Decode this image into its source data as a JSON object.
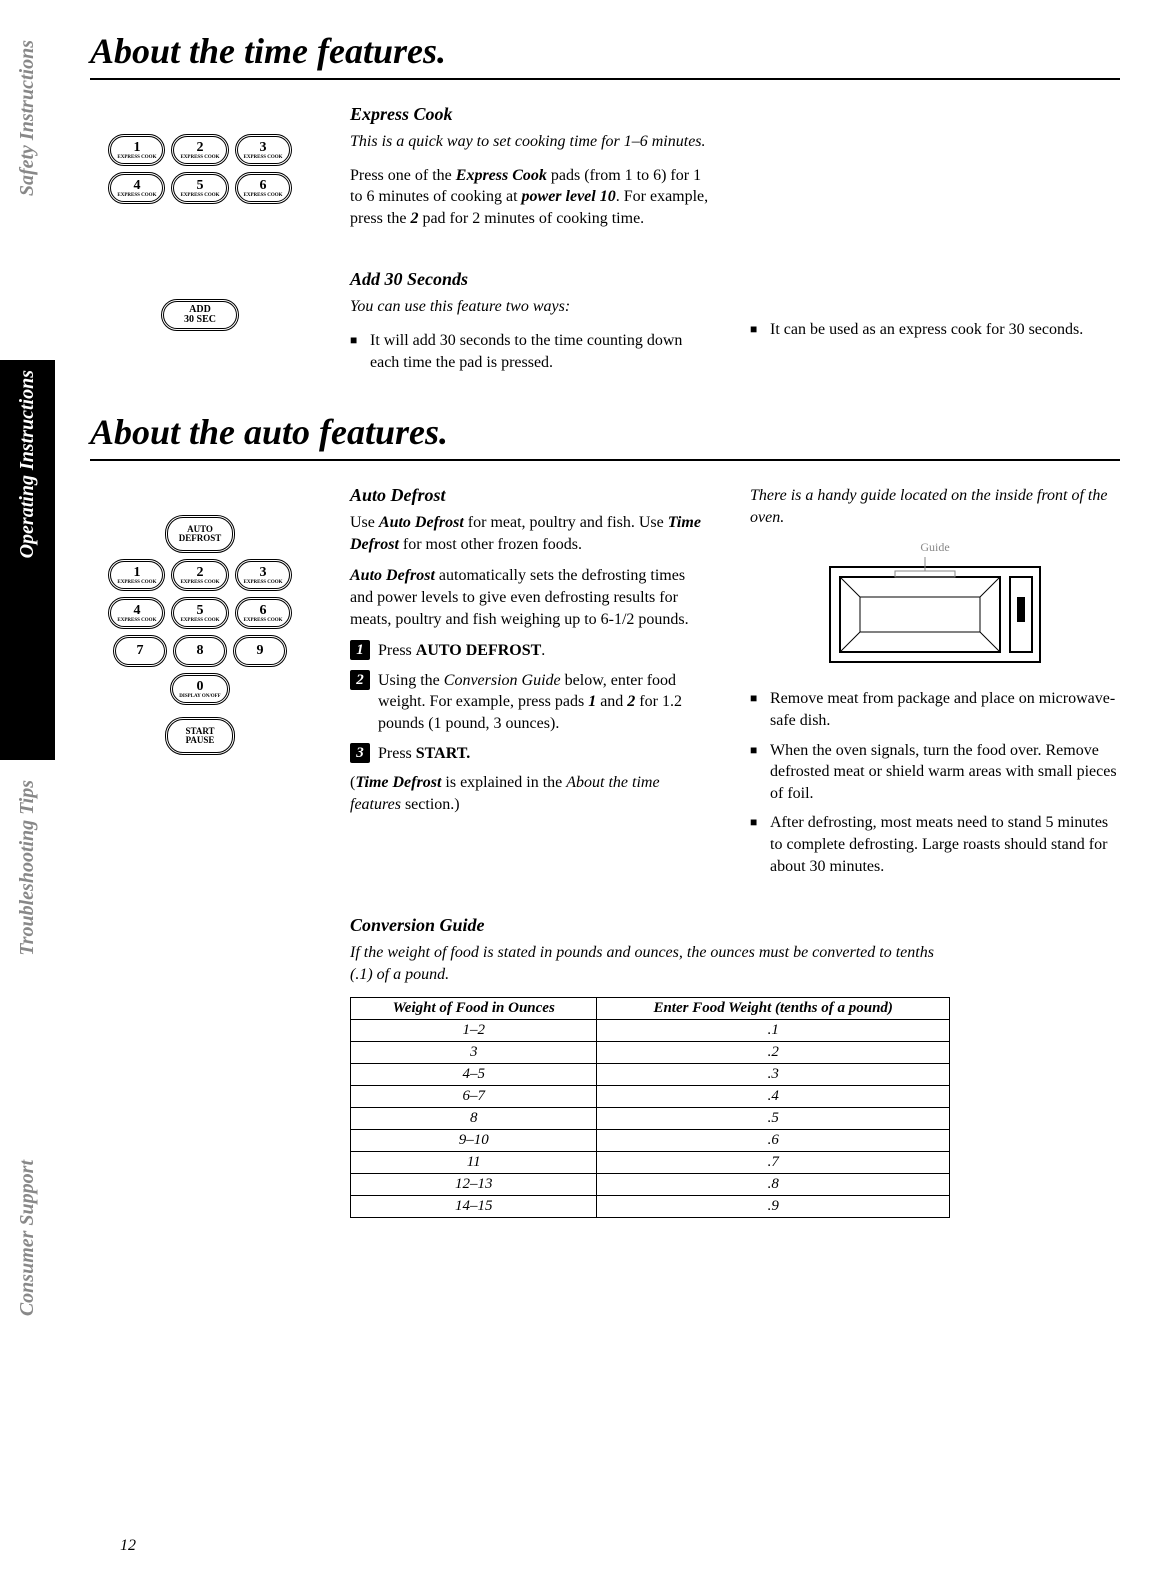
{
  "tabs": {
    "safety": "Safety Instructions",
    "operating": "Operating Instructions",
    "troubleshooting": "Troubleshooting Tips",
    "consumer": "Consumer Support"
  },
  "title1": "About the time features.",
  "title2": "About the auto features.",
  "expressCook": {
    "heading": "Express Cook",
    "intro": "This is a quick way to set cooking time for 1–6 minutes.",
    "body_pre": "Press one of the ",
    "body_bold1": "Express Cook",
    "body_mid1": " pads (from 1 to 6) for 1 to 6 minutes of cooking at ",
    "body_ital": "power level 10",
    "body_mid2": ". For example, press the ",
    "body_bold2": "2",
    "body_post": " pad for 2 minutes of cooking time."
  },
  "add30": {
    "heading": "Add 30 Seconds",
    "intro": "You can use this feature two ways:",
    "leftBullet": "It will add 30 seconds to the time counting down each time the pad is pressed.",
    "rightBullet": "It can be used as an express cook for 30 seconds.",
    "keyLine1": "ADD",
    "keyLine2": "30 SEC"
  },
  "autoDefrost": {
    "heading": "Auto Defrost",
    "p1_pre": "Use ",
    "p1_b1": "Auto Defrost",
    "p1_mid": " for meat, poultry and fish. Use ",
    "p1_b2": "Time Defrost",
    "p1_post": " for most other frozen foods.",
    "p2_b": "Auto Defrost",
    "p2_post": " automatically sets the defrosting times and power levels to give even defrosting results for meats, poultry and fish weighing up to 6-1/2 pounds.",
    "step1_pre": "Press ",
    "step1_b": "AUTO DEFROST",
    "step1_post": ".",
    "step2_pre": "Using the ",
    "step2_i": "Conversion Guide",
    "step2_mid": " below, enter food weight. For example, press pads ",
    "step2_b1": "1",
    "step2_mid2": " and ",
    "step2_b2": "2",
    "step2_post": " for 1.2 pounds (1 pound, 3 ounces).",
    "step3_pre": "Press ",
    "step3_b": "START.",
    "note_pre": "(",
    "note_b": "Time Defrost",
    "note_mid": " is explained in the ",
    "note_i": "About the time features",
    "note_post": " section.)",
    "rightIntro": "There is a handy guide located on the inside front of the oven.",
    "guideLabel": "Guide",
    "rb1": "Remove meat from package and place on microwave-safe dish.",
    "rb2": "When the oven signals, turn the food over. Remove defrosted meat or shield warm areas with small pieces of foil.",
    "rb3": "After defrosting, most meats need to stand 5 minutes to complete defrosting. Large roasts should stand for about 30 minutes."
  },
  "keypadAuto": {
    "autoDefrost1": "AUTO",
    "autoDefrost2": "DEFROST",
    "expressLabel": "EXPRESS COOK",
    "displayLabel": "DISPLAY ON/OFF",
    "start1": "START",
    "start2": "PAUSE"
  },
  "conversion": {
    "heading": "Conversion Guide",
    "intro": "If the weight of food is stated in pounds and ounces, the ounces must be converted to tenths (.1) of a pound.",
    "col1": "Weight of Food in Ounces",
    "col2": "Enter Food Weight (tenths of a pound)",
    "rows": [
      {
        "oz": "1–2",
        "t": ".1"
      },
      {
        "oz": "3",
        "t": ".2"
      },
      {
        "oz": "4–5",
        "t": ".3"
      },
      {
        "oz": "6–7",
        "t": ".4"
      },
      {
        "oz": "8",
        "t": ".5"
      },
      {
        "oz": "9–10",
        "t": ".6"
      },
      {
        "oz": "11",
        "t": ".7"
      },
      {
        "oz": "12–13",
        "t": ".8"
      },
      {
        "oz": "14–15",
        "t": ".9"
      }
    ]
  },
  "pageNumber": "12"
}
